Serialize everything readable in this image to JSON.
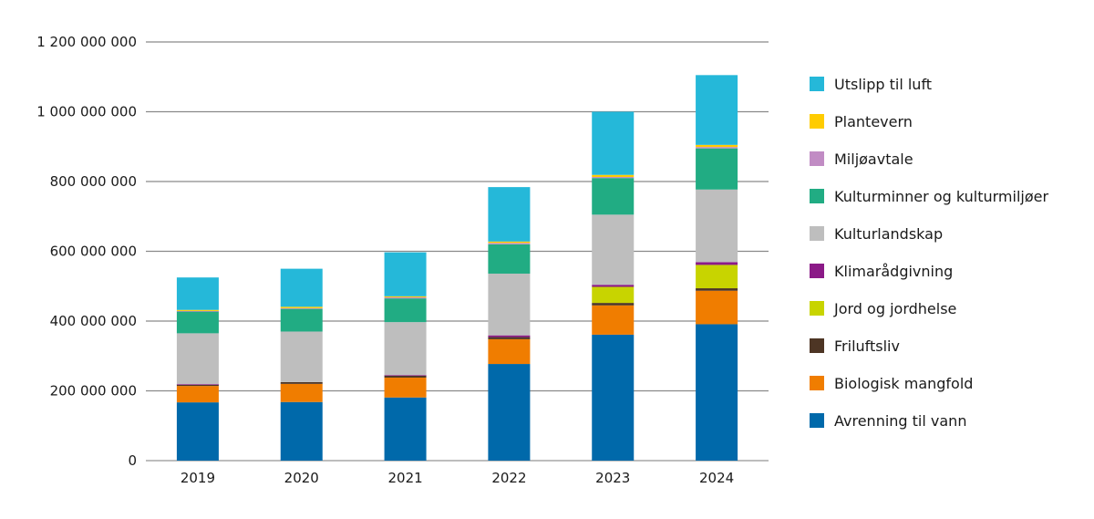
{
  "chart_data": {
    "type": "bar",
    "stacked": true,
    "title": "",
    "xlabel": "",
    "ylabel": "",
    "ylim": [
      0,
      1200000000
    ],
    "yticks": [
      0,
      200000000,
      400000000,
      600000000,
      800000000,
      1000000000,
      1200000000
    ],
    "ytick_labels": [
      "0",
      "200 000 000",
      "400 000 000",
      "600 000 000",
      "800 000 000",
      "1 000 000 000",
      "1 200 000 000"
    ],
    "grid": true,
    "legend_position": "right",
    "categories": [
      "2019",
      "2020",
      "2021",
      "2022",
      "2023",
      "2024"
    ],
    "series": [
      {
        "name": "Avrenning til vann",
        "color": "#0069AA",
        "values": [
          167000000,
          168000000,
          181000000,
          277000000,
          361000000,
          391000000
        ]
      },
      {
        "name": "Biologisk mangfold",
        "color": "#F07D00",
        "values": [
          47000000,
          52000000,
          57000000,
          71000000,
          84000000,
          96000000
        ]
      },
      {
        "name": "Friluftsliv",
        "color": "#4D3524",
        "values": [
          4000000,
          5000000,
          6000000,
          6000000,
          7000000,
          7000000
        ]
      },
      {
        "name": "Jord og jordhelse",
        "color": "#C8D400",
        "values": [
          0,
          0,
          0,
          0,
          46000000,
          67000000
        ]
      },
      {
        "name": "Klimarådgivning",
        "color": "#8B1A87",
        "values": [
          1000000,
          0,
          1000000,
          5000000,
          6000000,
          8000000
        ]
      },
      {
        "name": "Kulturlandskap",
        "color": "#BEBEBE",
        "values": [
          146000000,
          145000000,
          152000000,
          177000000,
          201000000,
          208000000
        ]
      },
      {
        "name": "Kulturminner og kulturmiljøer",
        "color": "#21AC83",
        "values": [
          63000000,
          65000000,
          68000000,
          84000000,
          105000000,
          118000000
        ]
      },
      {
        "name": "Miljøavtale",
        "color": "#C18CC4",
        "values": [
          1000000,
          2000000,
          3000000,
          4000000,
          3000000,
          4000000
        ]
      },
      {
        "name": "Plantevern",
        "color": "#FFCC00",
        "values": [
          3000000,
          4000000,
          3000000,
          4000000,
          6000000,
          6000000
        ]
      },
      {
        "name": "Utslipp til luft",
        "color": "#25B8D9",
        "values": [
          93000000,
          109000000,
          126000000,
          156000000,
          181000000,
          200000000
        ]
      }
    ]
  }
}
